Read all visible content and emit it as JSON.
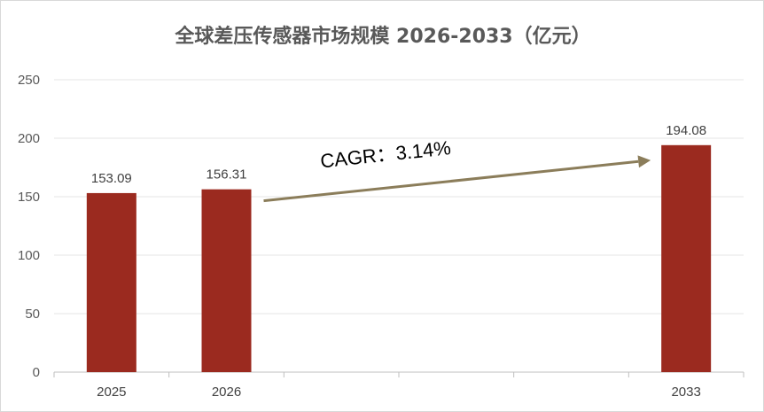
{
  "chart_data": {
    "type": "bar",
    "title": "全球差压传感器市场规模 2026-2033（亿元）",
    "categories": [
      "2025",
      "2026",
      "",
      "",
      "",
      "2033"
    ],
    "values": [
      153.09,
      156.31,
      null,
      null,
      null,
      194.08
    ],
    "data_labels": [
      "153.09",
      "156.31",
      "",
      "",
      "",
      "194.08"
    ],
    "ylim": [
      0,
      250
    ],
    "yticks": [
      0,
      50,
      100,
      150,
      200,
      250
    ],
    "grid": true,
    "bar_color": "#9B2A1F",
    "annotation": {
      "text": "CAGR：3.14%",
      "arrow_from_category": "2026",
      "arrow_to_category": "2033",
      "color": "#8B7D5A"
    }
  }
}
